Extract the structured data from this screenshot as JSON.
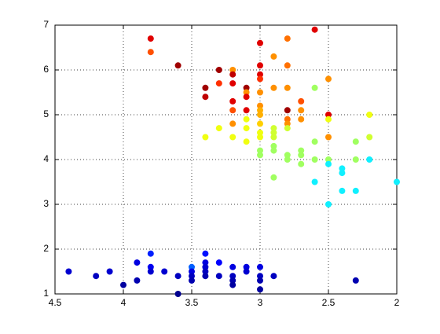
{
  "chart_data": {
    "type": "scatter",
    "x": [
      4.4,
      4.2,
      4.1,
      4.0,
      3.9,
      3.9,
      3.8,
      3.8,
      3.8,
      3.7,
      3.6,
      3.6,
      3.5,
      3.5,
      3.5,
      3.5,
      3.4,
      3.4,
      3.4,
      3.4,
      3.4,
      3.3,
      3.3,
      3.2,
      3.2,
      3.2,
      3.2,
      3.1,
      3.1,
      3.0,
      3.0,
      3.0,
      3.0,
      2.9,
      2.3,
      3.8,
      3.8,
      3.6,
      3.4,
      3.4,
      3.4,
      3.3,
      3.3,
      3.3,
      3.2,
      3.2,
      3.2,
      3.2,
      3.2,
      3.2,
      3.2,
      3.1,
      3.1,
      3.1,
      3.1,
      3.1,
      3.1,
      3.1,
      3.0,
      3.0,
      3.0,
      3.0,
      3.0,
      3.0,
      3.0,
      3.0,
      3.0,
      3.0,
      3.0,
      3.0,
      3.0,
      2.9,
      2.9,
      2.9,
      2.9,
      2.9,
      2.9,
      2.9,
      2.9,
      2.8,
      2.8,
      2.8,
      2.8,
      2.8,
      2.8,
      2.8,
      2.8,
      2.8,
      2.7,
      2.7,
      2.7,
      2.7,
      2.7,
      2.7,
      2.6,
      2.6,
      2.6,
      2.6,
      2.6,
      2.5,
      2.5,
      2.5,
      2.5,
      2.5,
      2.5,
      2.5,
      2.4,
      2.4,
      2.4,
      2.3,
      2.3,
      2.3,
      2.2,
      2.2,
      2.2,
      2.0
    ],
    "y": [
      1.5,
      1.4,
      1.5,
      1.2,
      1.7,
      1.3,
      1.9,
      1.6,
      1.5,
      1.5,
      1.4,
      1.0,
      1.6,
      1.5,
      1.4,
      1.3,
      1.9,
      1.7,
      1.6,
      1.5,
      1.4,
      1.7,
      1.4,
      1.6,
      1.4,
      1.3,
      1.2,
      1.6,
      1.5,
      1.6,
      1.4,
      1.3,
      1.1,
      1.4,
      1.3,
      6.7,
      6.4,
      6.1,
      5.6,
      5.4,
      4.5,
      6.0,
      5.7,
      4.7,
      6.0,
      5.9,
      5.7,
      5.3,
      5.1,
      4.8,
      4.5,
      5.6,
      5.5,
      5.4,
      5.1,
      4.9,
      4.7,
      4.4,
      6.6,
      6.1,
      5.9,
      5.8,
      5.5,
      5.2,
      5.1,
      5.0,
      4.8,
      4.6,
      4.5,
      4.2,
      4.1,
      6.3,
      5.6,
      4.7,
      4.6,
      4.5,
      4.3,
      4.2,
      3.6,
      6.7,
      6.1,
      5.6,
      5.1,
      4.9,
      4.8,
      4.7,
      4.1,
      4.0,
      5.3,
      5.1,
      4.9,
      4.2,
      4.1,
      3.9,
      6.9,
      5.6,
      4.4,
      4.0,
      3.5,
      5.8,
      5.0,
      4.9,
      4.5,
      4.0,
      3.9,
      3.0,
      3.8,
      3.7,
      3.3,
      4.4,
      4.0,
      3.3,
      5.0,
      4.5,
      4.0,
      3.5
    ],
    "colors": [
      "#0000d0",
      "#0000c0",
      "#0000d0",
      "#0000a0",
      "#0000e0",
      "#0000b0",
      "#0020ff",
      "#0000f0",
      "#0000d0",
      "#0000d0",
      "#0000c0",
      "#00008f",
      "#0060ff",
      "#0000e0",
      "#0000c0",
      "#0000b0",
      "#0010ff",
      "#0000e0",
      "#0000d0",
      "#0000c0",
      "#0000b0",
      "#0000ff",
      "#0000c0",
      "#0000e0",
      "#0000c0",
      "#0000b0",
      "#0000a0",
      "#0000e0",
      "#0000d0",
      "#0000e0",
      "#0000c0",
      "#0000b0",
      "#0000a0",
      "#0000c0",
      "#0000b0",
      "#e00000",
      "#ff5000",
      "#a00000",
      "#a00000",
      "#c00000",
      "#f0ff10",
      "#a00000",
      "#ff3000",
      "#f0ff10",
      "#ff9000",
      "#c00000",
      "#e00000",
      "#e00000",
      "#ff5000",
      "#ff9000",
      "#f0ff10",
      "#a00000",
      "#ff9000",
      "#e00000",
      "#e00000",
      "#f0ff10",
      "#f0ff10",
      "#f0ff10",
      "#e00000",
      "#e00000",
      "#e00000",
      "#ff3000",
      "#ff9000",
      "#ff9000",
      "#ffb000",
      "#ffb000",
      "#ffd000",
      "#f0ff10",
      "#f0ff10",
      "#a0ff60",
      "#a0ff60",
      "#ff9000",
      "#ff9000",
      "#d0ff30",
      "#d0ff30",
      "#d0ff30",
      "#a0ff60",
      "#a0ff60",
      "#a0ff60",
      "#ff7000",
      "#ff7000",
      "#ff9000",
      "#a00000",
      "#ff7000",
      "#ff9000",
      "#d0ff30",
      "#a0ff60",
      "#a0ff60",
      "#ff5000",
      "#ff9000",
      "#ff9000",
      "#a0ff60",
      "#a0ff60",
      "#a0ff60",
      "#e00000",
      "#a0ff60",
      "#a0ff60",
      "#a0ff60",
      "#10f0ff",
      "#ff9000",
      "#e00000",
      "#f0ff10",
      "#ff9000",
      "#a0ff60",
      "#10f0ff",
      "#10f0ff",
      "#10f0ff",
      "#10f0ff",
      "#10f0ff",
      "#a0ff60",
      "#a0ff60",
      "#10f0ff",
      "#f0ff10",
      "#d0ff30",
      "#10f0ff",
      "#10f0ff"
    ],
    "xlim": [
      4.5,
      2
    ],
    "ylim": [
      1,
      7
    ],
    "xticks": [
      4.5,
      4,
      3.5,
      3,
      2.5,
      2
    ],
    "yticks": [
      1,
      2,
      3,
      4,
      5,
      6,
      7
    ],
    "grid": true
  }
}
